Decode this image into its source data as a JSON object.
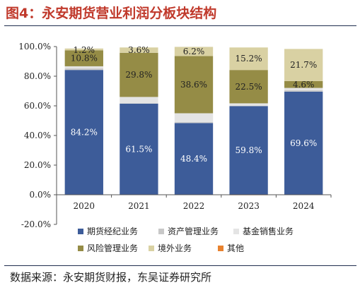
{
  "figure": {
    "title": "图4：永安期货营业利润分板块结构",
    "source": "数据来源：永安期货财报，东吴证券研究所"
  },
  "colors": {
    "title": "#c0392b",
    "futures_brokerage": "#3d5c99",
    "asset_management": "#c8c8c8",
    "fund_sales": "#e4e4e4",
    "risk_management": "#958c46",
    "overseas": "#d9d1a3",
    "other": "#e8822f"
  },
  "chart_data": {
    "type": "bar",
    "stacked": true,
    "categories": [
      "2020",
      "2021",
      "2022",
      "2023",
      "2024"
    ],
    "ylim": [
      -20,
      100
    ],
    "yticks": [
      -20,
      0,
      20,
      40,
      60,
      80,
      100
    ],
    "ytick_labels": [
      "-20.0%",
      "0.0%",
      "20.0%",
      "40.0%",
      "60.0%",
      "80.0%",
      "100.0%"
    ],
    "grid": false,
    "legend_position": "bottom",
    "series": [
      {
        "name": "期货经纪业务",
        "color": "#3d5c99",
        "values": [
          84.2,
          61.5,
          48.4,
          59.8,
          69.6
        ],
        "labels": [
          "84.2%",
          "61.5%",
          "48.4%",
          "59.8%",
          "69.6%"
        ],
        "label_color": "#ffffff"
      },
      {
        "name": "资产管理业务",
        "color": "#c8c8c8",
        "values": [
          1.0,
          0.3,
          0.6,
          0.3,
          1.0
        ],
        "labels": [
          "",
          "",
          "",
          "",
          ""
        ],
        "label_color": "#222222"
      },
      {
        "name": "基金销售业务",
        "color": "#e4e4e4",
        "values": [
          1.5,
          4.2,
          6.0,
          1.6,
          1.5
        ],
        "labels": [
          "",
          "",
          "",
          "",
          ""
        ],
        "label_color": "#222222"
      },
      {
        "name": "风险管理业务",
        "color": "#958c46",
        "values": [
          10.8,
          29.8,
          38.6,
          22.5,
          4.6
        ],
        "labels": [
          "10.8%",
          "29.8%",
          "38.6%",
          "22.5%",
          "4.6%"
        ],
        "label_color": "#222222"
      },
      {
        "name": "境外业务",
        "color": "#d9d1a3",
        "values": [
          1.2,
          3.6,
          6.2,
          15.2,
          21.7
        ],
        "labels": [
          "1.2%",
          "3.6%",
          "6.2%",
          "15.2%",
          "21.7%"
        ],
        "label_color": "#222222"
      },
      {
        "name": "其他",
        "color": "#e8822f",
        "values": [
          0.0,
          0.0,
          0.0,
          -0.3,
          0.0
        ],
        "labels": [
          "",
          "",
          "",
          "",
          ""
        ],
        "label_color": "#222222"
      }
    ]
  }
}
